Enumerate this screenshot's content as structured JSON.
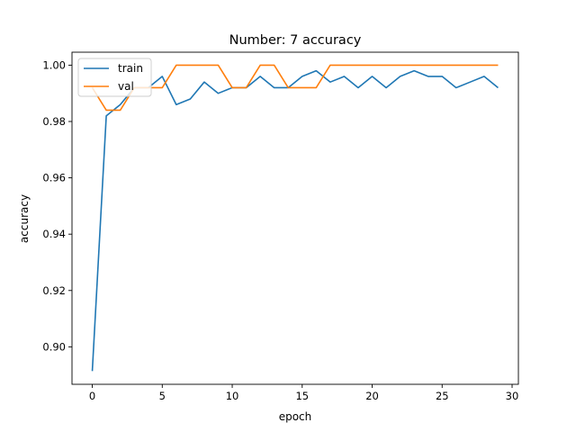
{
  "chart_data": {
    "type": "line",
    "title": "Number: 7 accuracy",
    "xlabel": "epoch",
    "ylabel": "accuracy",
    "xlim": [
      -1.45,
      30.45
    ],
    "ylim": [
      0.8867,
      1.0046
    ],
    "xticks": [
      0,
      5,
      10,
      15,
      20,
      25,
      30
    ],
    "yticks": [
      0.9,
      0.92,
      0.94,
      0.96,
      0.98,
      1.0
    ],
    "ytick_labels": [
      "0.90",
      "0.92",
      "0.94",
      "0.96",
      "0.98",
      "1.00"
    ],
    "grid": false,
    "legend_position": "top-left",
    "x": [
      0,
      1,
      2,
      3,
      4,
      5,
      6,
      7,
      8,
      9,
      10,
      11,
      12,
      13,
      14,
      15,
      16,
      17,
      18,
      19,
      20,
      21,
      22,
      23,
      24,
      25,
      26,
      27,
      28,
      29
    ],
    "series": [
      {
        "name": "train",
        "color": "#1f77b4",
        "values": [
          0.8914,
          0.982,
          0.986,
          0.992,
          0.992,
          0.996,
          0.986,
          0.988,
          0.994,
          0.99,
          0.992,
          0.992,
          0.996,
          0.992,
          0.992,
          0.996,
          0.998,
          0.994,
          0.996,
          0.992,
          0.996,
          0.992,
          0.996,
          0.998,
          0.996,
          0.996,
          0.992,
          0.994,
          0.996,
          0.992
        ]
      },
      {
        "name": "val",
        "color": "#ff7f0e",
        "values": [
          0.992,
          0.984,
          0.984,
          0.992,
          0.992,
          0.992,
          1.0,
          1.0,
          1.0,
          1.0,
          0.992,
          0.992,
          1.0,
          1.0,
          0.992,
          0.992,
          0.992,
          1.0,
          1.0,
          1.0,
          1.0,
          1.0,
          1.0,
          1.0,
          1.0,
          1.0,
          1.0,
          1.0,
          1.0,
          1.0
        ]
      }
    ]
  }
}
